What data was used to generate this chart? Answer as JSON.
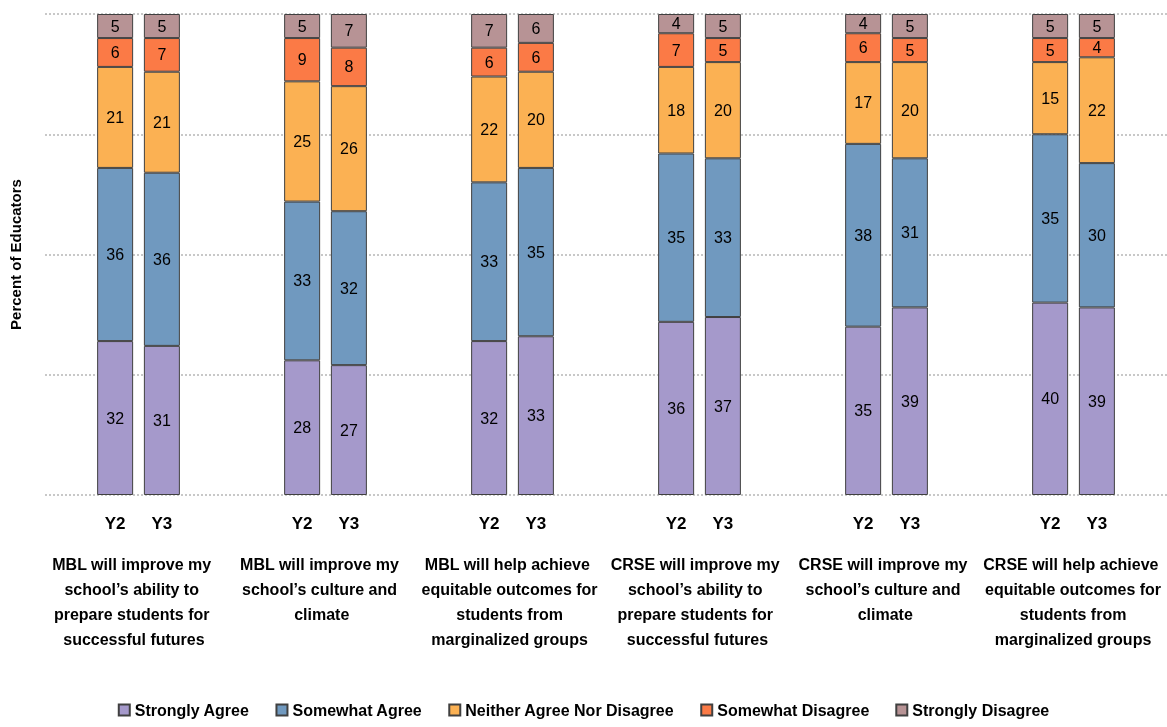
{
  "chart_data": {
    "type": "bar",
    "stacked": true,
    "ylabel": "Percent of Educators",
    "categories": [
      null,
      "Y2",
      "Y3",
      null,
      null,
      "Y2",
      "Y3",
      null,
      null,
      "Y2",
      "Y3",
      null,
      null,
      "Y2",
      "Y3",
      null,
      null,
      "Y2",
      "Y3",
      null,
      null,
      "Y2",
      "Y3",
      null
    ],
    "series": [
      {
        "name": "Strongly Agree",
        "color": "#a599cb",
        "values": [
          null,
          32,
          31,
          null,
          null,
          28,
          27,
          null,
          null,
          32,
          33,
          null,
          null,
          36,
          37,
          null,
          null,
          35,
          39,
          null,
          null,
          40,
          39,
          null
        ]
      },
      {
        "name": "Somewhat Agree",
        "color": "#7099bf",
        "values": [
          null,
          36,
          36,
          null,
          null,
          33,
          32,
          null,
          null,
          33,
          35,
          null,
          null,
          35,
          33,
          null,
          null,
          38,
          31,
          null,
          null,
          35,
          30,
          null
        ]
      },
      {
        "name": "Neither Agree Nor Disagree",
        "color": "#fbb153",
        "values": [
          null,
          21,
          21,
          null,
          null,
          25,
          26,
          null,
          null,
          22,
          20,
          null,
          null,
          18,
          20,
          null,
          null,
          17,
          20,
          null,
          null,
          15,
          22,
          null
        ]
      },
      {
        "name": "Somewhat Disagree",
        "color": "#fb7a46",
        "values": [
          null,
          6,
          7,
          null,
          null,
          9,
          8,
          null,
          null,
          6,
          6,
          null,
          null,
          7,
          5,
          null,
          null,
          6,
          5,
          null,
          null,
          5,
          4,
          null
        ]
      },
      {
        "name": "Strongly Disagree",
        "color": "#b79395",
        "values": [
          null,
          5,
          5,
          null,
          null,
          5,
          7,
          null,
          null,
          7,
          6,
          null,
          null,
          4,
          5,
          null,
          null,
          4,
          5,
          null,
          null,
          5,
          5,
          null
        ]
      }
    ],
    "grid": "y",
    "legend": "bottom",
    "data_labels": true,
    "annotations": [
      "MBL will improve my school’s ability to prepare students for successful futures",
      "MBL will improve my school’s culture and climate",
      "MBL will help achieve equitable outcomes for students from marginalized groups",
      "CRSE will improve my school’s ability to prepare students for successful futures",
      "CRSE will improve my school’s culture and climate",
      "CRSE will help achieve equitable outcomes for students from marginalized groups"
    ]
  }
}
